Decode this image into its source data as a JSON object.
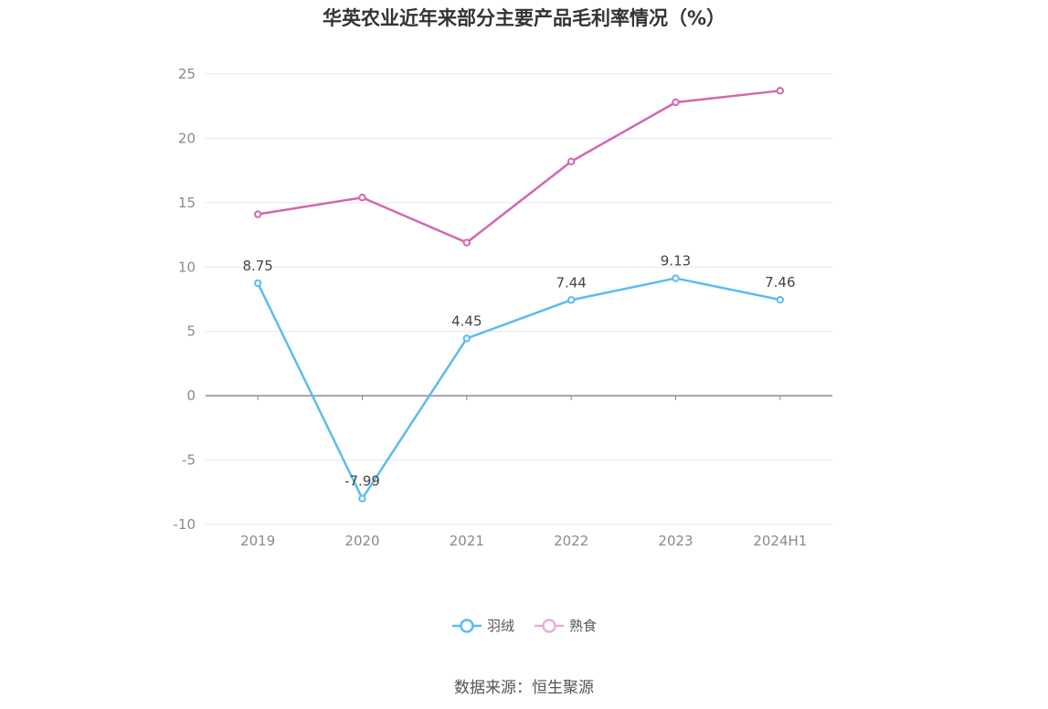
{
  "title": "华英农业近年来部分主要产品毛利率情况（%）",
  "source": "数据来源：恒生聚源",
  "colors": {
    "series1": "#5bbcf0",
    "series2": "#d068b0",
    "series2_legend": "#e6b0d6",
    "grid": "#e3e7ef",
    "axis": "#8a8a99"
  },
  "chart_data": {
    "type": "line",
    "title": "华英农业近年来部分主要产品毛利率情况（%）",
    "xlabel": "",
    "ylabel": "",
    "categories": [
      "2019",
      "2020",
      "2021",
      "2022",
      "2023",
      "2024H1"
    ],
    "ylim": [
      -10,
      25
    ],
    "yticks": [
      25,
      20,
      15,
      10,
      5,
      0,
      -5,
      -10
    ],
    "grid": true,
    "legend_position": "bottom",
    "series": [
      {
        "name": "羽绒",
        "values": [
          8.75,
          -7.99,
          4.45,
          7.44,
          9.13,
          7.46
        ],
        "labels": [
          "8.75",
          "-7.99",
          "4.45",
          "7.44",
          "9.13",
          "7.46"
        ],
        "show_labels": true
      },
      {
        "name": "熟食",
        "values": [
          14.1,
          15.4,
          11.9,
          18.2,
          22.8,
          23.7
        ],
        "show_labels": false
      }
    ]
  }
}
